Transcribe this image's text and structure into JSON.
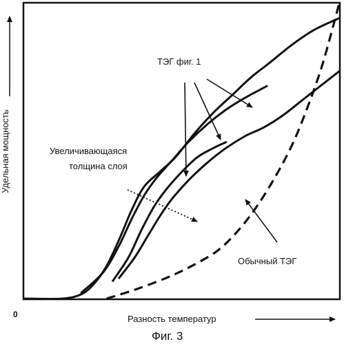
{
  "chart_data": {
    "type": "line",
    "xlabel": "Разность температур",
    "ylabel": "Удельная мощность",
    "origin_label": "0",
    "caption": "Фиг. 3",
    "xlim": [
      0,
      1
    ],
    "ylim": [
      0,
      1
    ],
    "grid": false,
    "annotations": [
      {
        "text": "ТЭГ фиг. 1"
      },
      {
        "text_lines": [
          "Увеличивающаяся",
          "толщина слоя"
        ]
      },
      {
        "text": "Обычный ТЭГ"
      }
    ],
    "series": [
      {
        "style": "solid",
        "points": [
          [
            0.0,
            0.0
          ],
          [
            0.12,
            0.0
          ],
          [
            0.18,
            0.015
          ],
          [
            0.22,
            0.05
          ],
          [
            0.26,
            0.11
          ],
          [
            0.3,
            0.2
          ],
          [
            0.34,
            0.3
          ],
          [
            0.38,
            0.38
          ],
          [
            0.43,
            0.43
          ],
          [
            0.48,
            0.48
          ],
          [
            0.54,
            0.56
          ],
          [
            0.6,
            0.63
          ],
          [
            0.66,
            0.69
          ],
          [
            0.72,
            0.75
          ],
          [
            0.78,
            0.8
          ],
          [
            0.85,
            0.86
          ],
          [
            0.92,
            0.91
          ],
          [
            1.0,
            0.95
          ]
        ]
      },
      {
        "style": "solid",
        "points": [
          [
            0.18,
            0.02
          ],
          [
            0.25,
            0.09
          ],
          [
            0.3,
            0.18
          ],
          [
            0.34,
            0.27
          ],
          [
            0.38,
            0.35
          ],
          [
            0.42,
            0.41
          ],
          [
            0.47,
            0.47
          ],
          [
            0.52,
            0.53
          ],
          [
            0.58,
            0.59
          ],
          [
            0.64,
            0.64
          ],
          [
            0.7,
            0.68
          ],
          [
            0.77,
            0.72
          ]
        ]
      },
      {
        "style": "solid",
        "points": [
          [
            0.28,
            0.06
          ],
          [
            0.33,
            0.14
          ],
          [
            0.37,
            0.23
          ],
          [
            0.41,
            0.31
          ],
          [
            0.45,
            0.37
          ],
          [
            0.5,
            0.43
          ],
          [
            0.55,
            0.48
          ],
          [
            0.6,
            0.51
          ],
          [
            0.64,
            0.53
          ]
        ]
      },
      {
        "style": "solid",
        "points": [
          [
            0.3,
            0.07
          ],
          [
            0.35,
            0.14
          ],
          [
            0.39,
            0.21
          ],
          [
            0.43,
            0.28
          ],
          [
            0.47,
            0.34
          ],
          [
            0.52,
            0.4
          ],
          [
            0.58,
            0.46
          ],
          [
            0.64,
            0.51
          ],
          [
            0.7,
            0.55
          ],
          [
            0.76,
            0.58
          ],
          [
            0.82,
            0.62
          ],
          [
            0.88,
            0.67
          ],
          [
            0.94,
            0.72
          ],
          [
            1.0,
            0.77
          ]
        ]
      },
      {
        "style": "dashed",
        "points": [
          [
            0.26,
            0.0
          ],
          [
            0.35,
            0.03
          ],
          [
            0.45,
            0.07
          ],
          [
            0.53,
            0.11
          ],
          [
            0.61,
            0.16
          ],
          [
            0.67,
            0.22
          ],
          [
            0.73,
            0.3
          ],
          [
            0.79,
            0.4
          ],
          [
            0.85,
            0.52
          ],
          [
            0.9,
            0.65
          ],
          [
            0.94,
            0.77
          ],
          [
            0.97,
            0.88
          ],
          [
            1.0,
            1.0
          ]
        ]
      }
    ]
  }
}
